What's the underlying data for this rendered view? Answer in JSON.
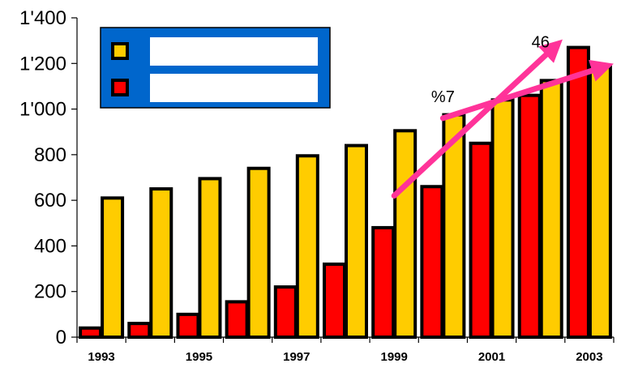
{
  "chart_data": {
    "type": "bar",
    "categories": [
      "1993",
      "1994",
      "1995",
      "1996",
      "1997",
      "1998",
      "1999",
      "2000",
      "2001",
      "2002",
      "2003"
    ],
    "x_tick_labels": [
      "1993",
      "1995",
      "1997",
      "1999",
      "2001",
      "2003"
    ],
    "y_tick_labels": [
      "0",
      "200",
      "400",
      "600",
      "800",
      "1'000",
      "1'200",
      "1'400"
    ],
    "ylim": [
      0,
      1400
    ],
    "y_tick_step": 200,
    "grid": false,
    "legend_placement": "top-left",
    "series": [
      {
        "color": "#ff0000",
        "values": [
          40,
          60,
          100,
          155,
          220,
          320,
          480,
          660,
          850,
          1060,
          1270
        ]
      },
      {
        "color": "#ffcc00",
        "values": [
          610,
          650,
          695,
          740,
          795,
          840,
          905,
          975,
          1040,
          1125,
          1185
        ]
      }
    ],
    "legend": {
      "background_color": "#0066cc",
      "entries": [
        {
          "swatch_color": "#ffcc00",
          "label": ""
        },
        {
          "swatch_color": "#ff0000",
          "label": ""
        }
      ]
    },
    "annotations": [
      {
        "text": "%7",
        "anchor_x": "2000",
        "anchor_y": 1030
      },
      {
        "text": "46",
        "anchor_x": "2002",
        "anchor_y": 1270
      }
    ],
    "arrows": [
      {
        "color": "#ff3399",
        "from_x": "2000",
        "from_y": 960,
        "to_x": "2003",
        "to_y": 1185
      },
      {
        "color": "#ff3399",
        "from_x": "1999",
        "from_y": 620,
        "to_x": "2002",
        "to_y": 1275
      }
    ]
  }
}
